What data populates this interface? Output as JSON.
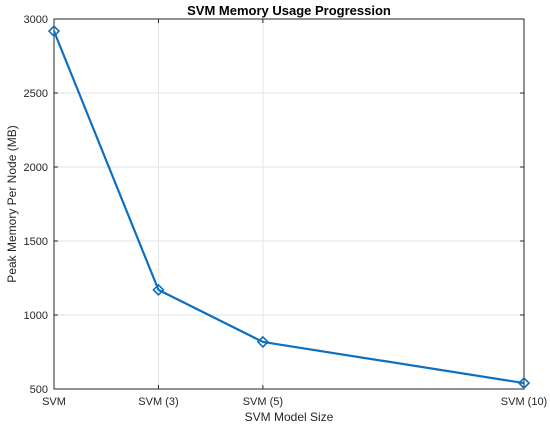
{
  "chart_data": {
    "type": "line",
    "title": "SVM Memory Usage Progression",
    "xlabel": "SVM Model Size",
    "ylabel": "Peak Memory Per Node (MB)",
    "x": [
      1,
      3,
      5,
      10
    ],
    "x_tick_labels": [
      "SVM",
      "SVM (3)",
      "SVM (5)",
      "SVM (10)"
    ],
    "xlim": [
      1,
      10
    ],
    "ylim": [
      500,
      3000
    ],
    "y_ticks": [
      500,
      1000,
      1500,
      2000,
      2500,
      3000
    ],
    "grid": true,
    "marker": "diamond",
    "color": "#0d6fbf",
    "series": [
      {
        "values": [
          2918,
          1170,
          818,
          540
        ]
      }
    ]
  }
}
